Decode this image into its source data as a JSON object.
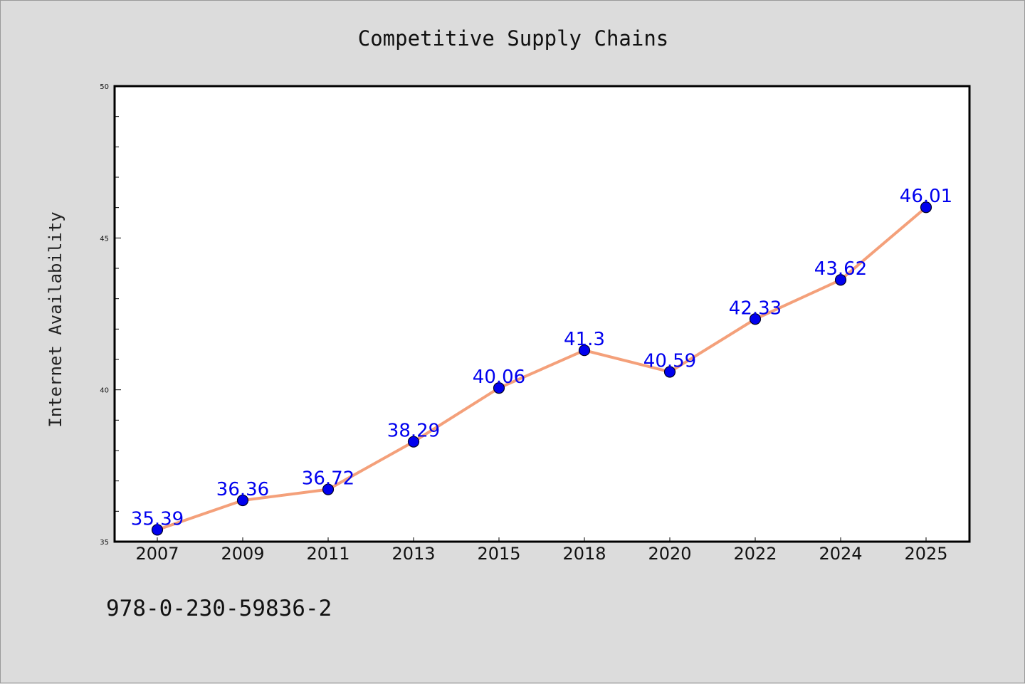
{
  "colors": {
    "background": "#dcdcdc",
    "plot_background": "#ffffff",
    "line": "#f4a07a",
    "marker": "#0000ee",
    "data_label": "#0000ee"
  },
  "chart_data": {
    "type": "line",
    "title": "Competitive Supply Chains",
    "xlabel": "",
    "ylabel": "Internet Availability",
    "categories": [
      "2007",
      "2009",
      "2011",
      "2013",
      "2015",
      "2018",
      "2020",
      "2022",
      "2024",
      "2025"
    ],
    "series": [
      {
        "values": [
          35.39,
          36.36,
          36.72,
          38.29,
          40.06,
          41.3,
          40.59,
          42.33,
          43.62,
          46.01
        ],
        "labels": [
          "35.39",
          "36.36",
          "36.72",
          "38.29",
          "40.06",
          "41.3",
          "40.59",
          "42.33",
          "43.62",
          "46.01"
        ]
      }
    ],
    "ylim": [
      35,
      50
    ],
    "y_major_ticks": [
      35,
      40,
      45,
      50
    ],
    "y_minor_step": 1,
    "grid": false,
    "legend": "none"
  },
  "footer": {
    "isbn": "978-0-230-59836-2"
  }
}
